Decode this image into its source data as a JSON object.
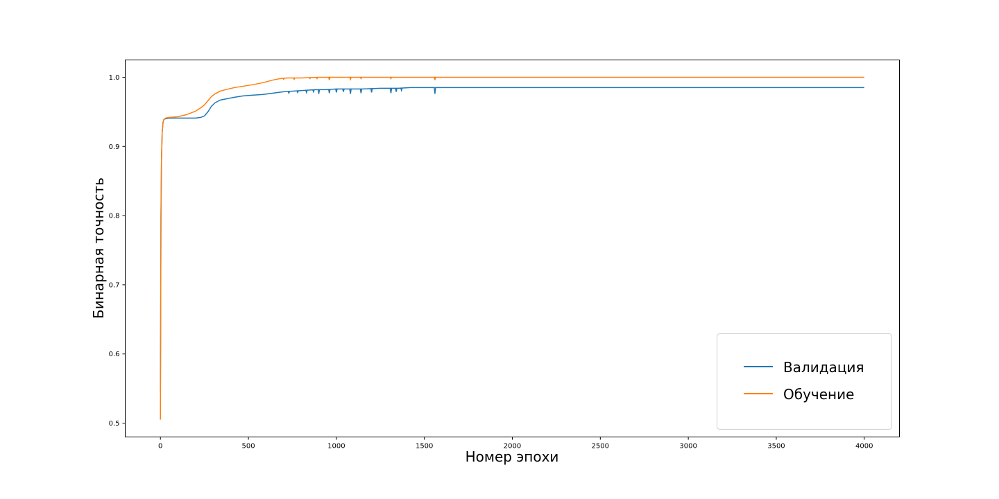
{
  "chart_data": {
    "type": "line",
    "title": "",
    "xlabel": "Номер эпохи",
    "ylabel": "Бинарная точность",
    "xlim": [
      -200,
      4200
    ],
    "ylim": [
      0.48,
      1.025
    ],
    "x_ticks": [
      0,
      500,
      1000,
      1500,
      2000,
      2500,
      3000,
      3500,
      4000
    ],
    "y_ticks": [
      0.5,
      0.6,
      0.7,
      0.8,
      0.9,
      1.0
    ],
    "x_tick_labels": [
      "0",
      "500",
      "1000",
      "1500",
      "2000",
      "2500",
      "3000",
      "3500",
      "4000"
    ],
    "y_tick_labels": [
      "0.5",
      "0.6",
      "0.7",
      "0.8",
      "0.9",
      "1.0"
    ],
    "grid": false,
    "legend_position": "lower-right",
    "series": [
      {
        "name": "Валидация",
        "color": "#1f77b4",
        "x": [
          0,
          3,
          6,
          10,
          15,
          20,
          30,
          50,
          100,
          150,
          200,
          230,
          250,
          270,
          290,
          310,
          340,
          380,
          420,
          470,
          520,
          580,
          640,
          700,
          760,
          820,
          880,
          940,
          1000,
          1080,
          1150,
          1250,
          1350,
          1420,
          1500,
          1560,
          1600,
          2000,
          2500,
          3000,
          3500,
          4000
        ],
        "values": [
          0.545,
          0.8,
          0.88,
          0.92,
          0.935,
          0.939,
          0.94,
          0.941,
          0.941,
          0.941,
          0.941,
          0.942,
          0.944,
          0.95,
          0.958,
          0.963,
          0.967,
          0.969,
          0.971,
          0.973,
          0.974,
          0.975,
          0.977,
          0.979,
          0.98,
          0.981,
          0.982,
          0.982,
          0.983,
          0.983,
          0.983,
          0.984,
          0.984,
          0.985,
          0.985,
          0.985,
          0.985,
          0.985,
          0.985,
          0.985,
          0.985,
          0.985
        ],
        "dips": [
          {
            "x": 730,
            "value": 0.977
          },
          {
            "x": 780,
            "value": 0.978
          },
          {
            "x": 830,
            "value": 0.978
          },
          {
            "x": 870,
            "value": 0.979
          },
          {
            "x": 900,
            "value": 0.976
          },
          {
            "x": 960,
            "value": 0.977
          },
          {
            "x": 1000,
            "value": 0.978
          },
          {
            "x": 1040,
            "value": 0.979
          },
          {
            "x": 1080,
            "value": 0.976
          },
          {
            "x": 1140,
            "value": 0.977
          },
          {
            "x": 1200,
            "value": 0.978
          },
          {
            "x": 1310,
            "value": 0.977
          },
          {
            "x": 1340,
            "value": 0.979
          },
          {
            "x": 1370,
            "value": 0.981
          },
          {
            "x": 1560,
            "value": 0.976
          }
        ]
      },
      {
        "name": "Обучение",
        "color": "#ff7f0e",
        "x": [
          0,
          3,
          6,
          10,
          15,
          20,
          30,
          50,
          100,
          150,
          200,
          230,
          250,
          270,
          290,
          310,
          340,
          370,
          420,
          470,
          520,
          580,
          640,
          680,
          720,
          800,
          900,
          1000,
          1200,
          1400,
          1600,
          2000,
          2500,
          3000,
          3500,
          4000
        ],
        "values": [
          0.505,
          0.78,
          0.88,
          0.92,
          0.935,
          0.939,
          0.941,
          0.942,
          0.943,
          0.946,
          0.951,
          0.956,
          0.96,
          0.966,
          0.972,
          0.976,
          0.98,
          0.982,
          0.985,
          0.987,
          0.989,
          0.992,
          0.996,
          0.998,
          0.999,
          0.999,
          1.0,
          1.0,
          1.0,
          1.0,
          1.0,
          1.0,
          1.0,
          1.0,
          1.0,
          1.0
        ],
        "dips": [
          {
            "x": 700,
            "value": 0.997
          },
          {
            "x": 760,
            "value": 0.997
          },
          {
            "x": 850,
            "value": 0.998
          },
          {
            "x": 890,
            "value": 0.998
          },
          {
            "x": 960,
            "value": 0.996
          },
          {
            "x": 1080,
            "value": 0.997
          },
          {
            "x": 1140,
            "value": 0.998
          },
          {
            "x": 1310,
            "value": 0.998
          },
          {
            "x": 1560,
            "value": 0.996
          }
        ]
      }
    ]
  }
}
